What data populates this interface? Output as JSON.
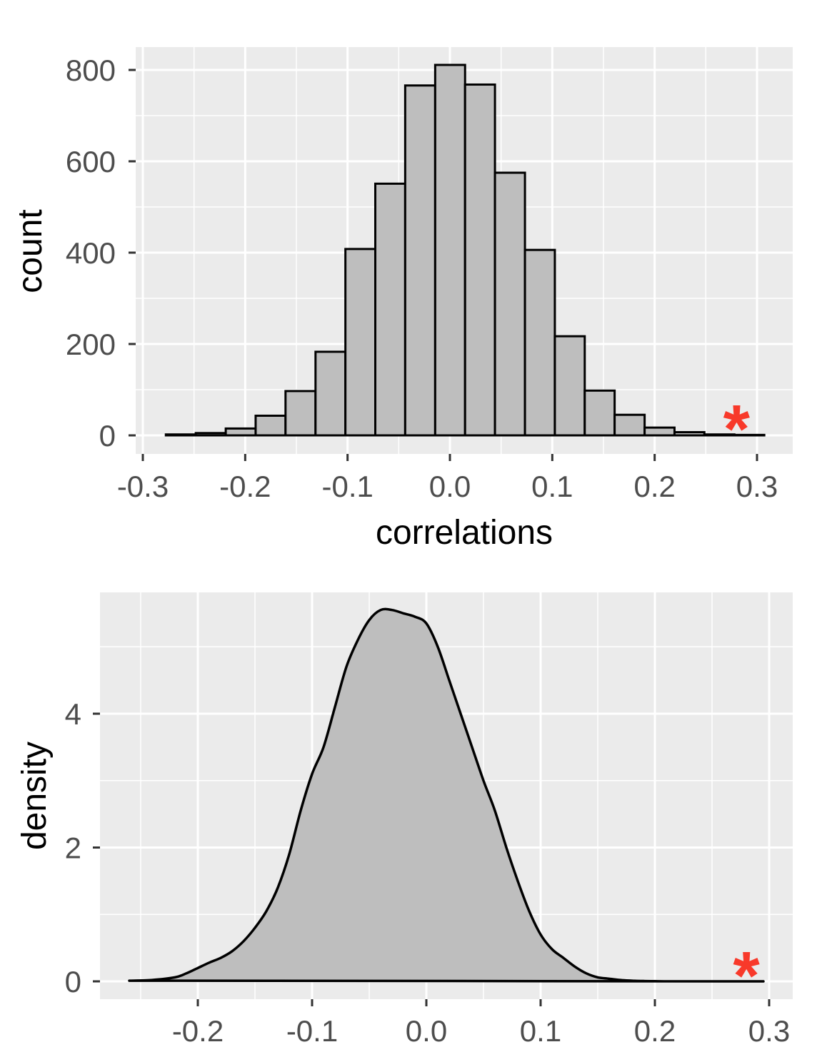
{
  "colors": {
    "panel_background": "#ebebeb",
    "grid": "#ffffff",
    "fill": "#bebebe",
    "outline": "#000000",
    "marker": "#f8392a"
  },
  "chart_data": [
    {
      "type": "bar",
      "subtype": "histogram",
      "xlabel": "correlations",
      "ylabel": "count",
      "xlim": [
        -0.3,
        0.3
      ],
      "ylim": [
        0,
        800
      ],
      "x_ticks": [
        -0.3,
        -0.2,
        -0.1,
        0.0,
        0.1,
        0.2,
        0.3
      ],
      "x_tick_labels": [
        "-0.3",
        "-0.2",
        "-0.1",
        "0.0",
        "0.1",
        "0.2",
        "0.3"
      ],
      "y_ticks": [
        0,
        200,
        400,
        600,
        800
      ],
      "y_tick_labels": [
        "0",
        "200",
        "400",
        "600",
        "800"
      ],
      "grid": true,
      "bins": [
        {
          "x0": -0.2775,
          "x1": -0.2483,
          "count": 2
        },
        {
          "x0": -0.2483,
          "x1": -0.219,
          "count": 5
        },
        {
          "x0": -0.219,
          "x1": -0.1898,
          "count": 15
        },
        {
          "x0": -0.1898,
          "x1": -0.1606,
          "count": 43
        },
        {
          "x0": -0.1606,
          "x1": -0.1313,
          "count": 97
        },
        {
          "x0": -0.1313,
          "x1": -0.1021,
          "count": 183
        },
        {
          "x0": -0.1021,
          "x1": -0.0729,
          "count": 408
        },
        {
          "x0": -0.0729,
          "x1": -0.0437,
          "count": 551
        },
        {
          "x0": -0.0437,
          "x1": -0.0144,
          "count": 766
        },
        {
          "x0": -0.0144,
          "x1": 0.0148,
          "count": 811
        },
        {
          "x0": 0.0148,
          "x1": 0.044,
          "count": 768
        },
        {
          "x0": 0.044,
          "x1": 0.0733,
          "count": 575
        },
        {
          "x0": 0.0733,
          "x1": 0.1025,
          "count": 406
        },
        {
          "x0": 0.1025,
          "x1": 0.1317,
          "count": 217
        },
        {
          "x0": 0.1317,
          "x1": 0.1609,
          "count": 98
        },
        {
          "x0": 0.1609,
          "x1": 0.1902,
          "count": 45
        },
        {
          "x0": 0.1902,
          "x1": 0.2194,
          "count": 17
        },
        {
          "x0": 0.2194,
          "x1": 0.2486,
          "count": 7
        },
        {
          "x0": 0.2486,
          "x1": 0.2779,
          "count": 2
        },
        {
          "x0": 0.2779,
          "x1": 0.3071,
          "count": 1
        }
      ],
      "annotation": {
        "text": "*",
        "x": 0.28,
        "y": 20
      }
    },
    {
      "type": "area",
      "subtype": "density",
      "xlabel": "",
      "ylabel": "density",
      "xlim": [
        -0.26,
        0.3
      ],
      "ylim": [
        0,
        5.5
      ],
      "x_ticks": [
        -0.2,
        -0.1,
        0.0,
        0.1,
        0.2,
        0.3
      ],
      "x_tick_labels": [
        "-0.2",
        "-0.1",
        "0.0",
        "0.1",
        "0.2",
        "0.3"
      ],
      "y_ticks": [
        0,
        2,
        4
      ],
      "y_tick_labels": [
        "0",
        "2",
        "4"
      ],
      "grid": true,
      "x": [
        -0.26,
        -0.24,
        -0.22,
        -0.21,
        -0.2,
        -0.19,
        -0.18,
        -0.17,
        -0.16,
        -0.15,
        -0.14,
        -0.13,
        -0.12,
        -0.11,
        -0.1,
        -0.09,
        -0.08,
        -0.07,
        -0.06,
        -0.05,
        -0.04,
        -0.03,
        -0.02,
        -0.01,
        0.0,
        0.01,
        0.02,
        0.03,
        0.04,
        0.05,
        0.06,
        0.07,
        0.08,
        0.09,
        0.1,
        0.11,
        0.12,
        0.13,
        0.14,
        0.15,
        0.16,
        0.17,
        0.18,
        0.19,
        0.2,
        0.21,
        0.22,
        0.24,
        0.26,
        0.28,
        0.295
      ],
      "y": [
        0.01,
        0.02,
        0.06,
        0.12,
        0.2,
        0.28,
        0.35,
        0.45,
        0.6,
        0.8,
        1.05,
        1.4,
        1.9,
        2.55,
        3.1,
        3.5,
        4.1,
        4.7,
        5.1,
        5.4,
        5.55,
        5.55,
        5.5,
        5.45,
        5.35,
        5.0,
        4.5,
        4.0,
        3.5,
        3.0,
        2.55,
        2.0,
        1.5,
        1.05,
        0.7,
        0.48,
        0.35,
        0.22,
        0.12,
        0.06,
        0.04,
        0.02,
        0.01,
        0.005,
        0.002,
        0.0,
        0.0,
        0.0,
        0.0,
        0.0,
        0.0
      ],
      "annotation": {
        "text": "*",
        "x": 0.28,
        "y": 0.1
      }
    }
  ]
}
